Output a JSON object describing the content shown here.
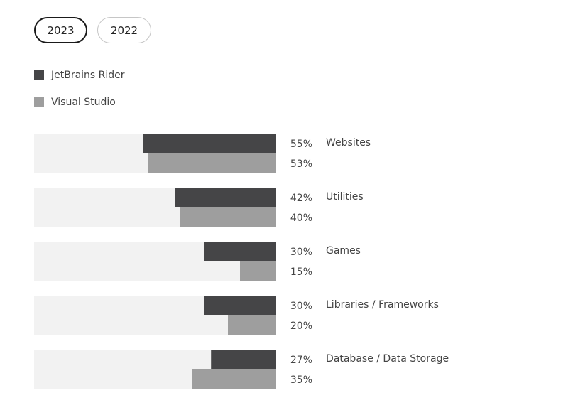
{
  "tabs": [
    {
      "label": "2023",
      "active": true
    },
    {
      "label": "2022",
      "active": false
    }
  ],
  "colors": {
    "track": "#f2f2f2",
    "rider": "#454547",
    "visual_studio": "#9e9e9e"
  },
  "chart_data": {
    "type": "bar",
    "orientation": "horizontal",
    "xlim": [
      0,
      100
    ],
    "unit": "%",
    "legend_position": "top-left",
    "categories": [
      "Websites",
      "Utilities",
      "Games",
      "Libraries / Frameworks",
      "Database / Data Storage"
    ],
    "series": [
      {
        "name": "JetBrains Rider",
        "color": "#454547",
        "values": [
          55,
          42,
          30,
          30,
          27
        ],
        "labels": [
          "55%",
          "42%",
          "30%",
          "30%",
          "27%"
        ]
      },
      {
        "name": "Visual Studio",
        "color": "#9e9e9e",
        "values": [
          53,
          40,
          15,
          20,
          35
        ],
        "labels": [
          "53%",
          "40%",
          "15%",
          "20%",
          "35%"
        ]
      }
    ]
  }
}
